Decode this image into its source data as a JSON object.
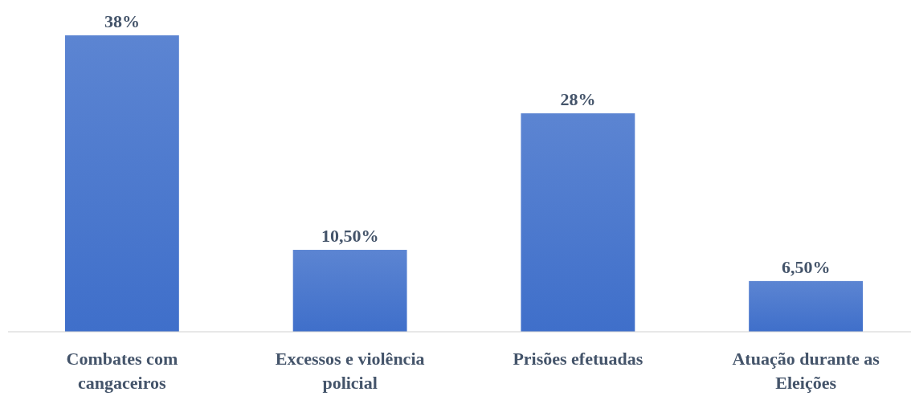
{
  "chart_data": {
    "type": "bar",
    "categories": [
      "Combates com cangaceiros",
      "Excessos e violência policial",
      "Prisões efetuadas",
      "Atuação durante as Eleições"
    ],
    "values": [
      38,
      10.5,
      28,
      6.5
    ],
    "value_labels": [
      "38%",
      "10,50%",
      "28%",
      "6,50%"
    ],
    "color": "#3f6fca"
  }
}
